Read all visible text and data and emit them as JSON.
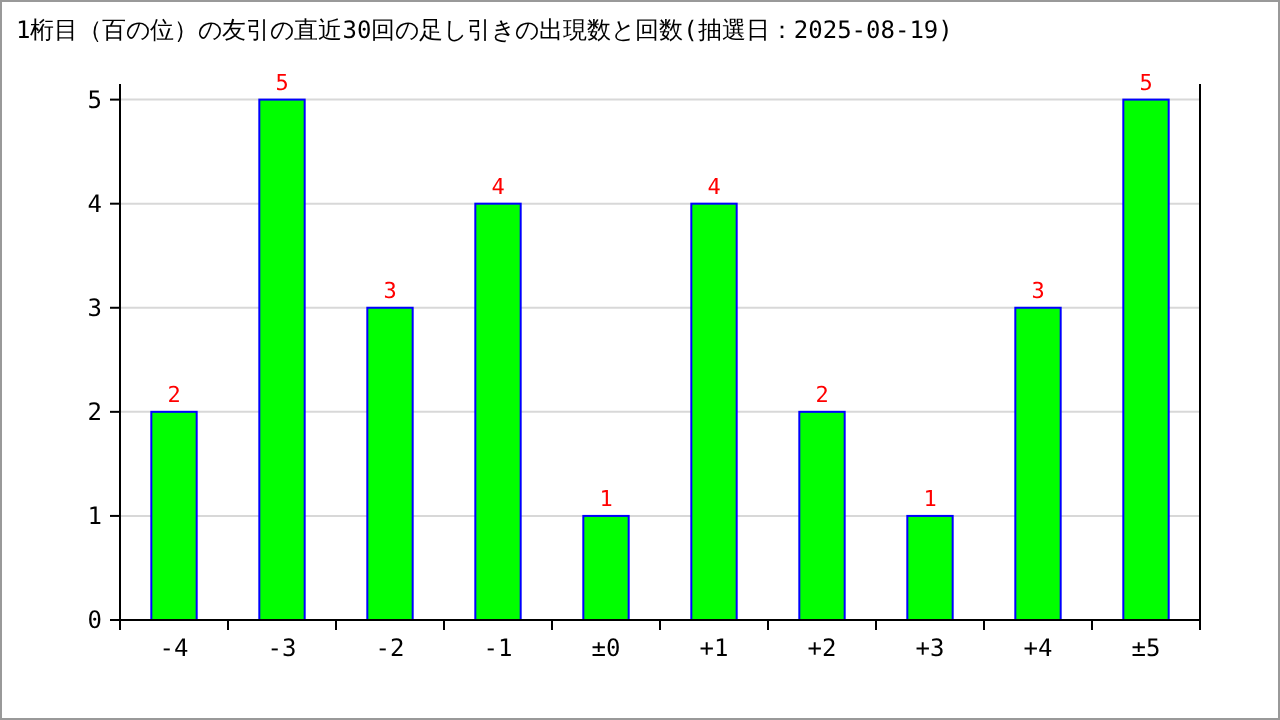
{
  "chart_data": {
    "type": "bar",
    "title": "1桁目（百の位）の友引の直近30回の足し引きの出現数と回数(抽選日：2025-08-19)",
    "categories": [
      "-4",
      "-3",
      "-2",
      "-1",
      "±0",
      "+1",
      "+2",
      "+3",
      "+4",
      "±5"
    ],
    "values": [
      2,
      5,
      3,
      4,
      1,
      4,
      2,
      1,
      3,
      5
    ],
    "color": "#00ff00",
    "ylim": [
      0,
      5.15
    ],
    "yticks": [
      0,
      1,
      2,
      3,
      4,
      5
    ],
    "grid": "y",
    "data_labels": true
  }
}
